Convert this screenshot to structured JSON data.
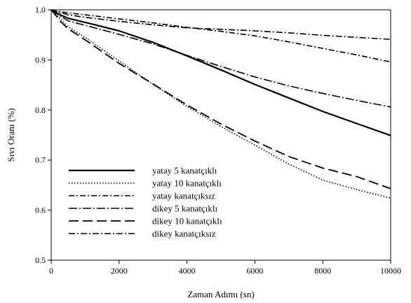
{
  "chart_data": {
    "type": "line",
    "title": "",
    "xlabel": "Zaman Adımı (sn)",
    "ylabel": "Sıvı Oranı (%)",
    "xlim": [
      0,
      10000
    ],
    "ylim": [
      0.5,
      1.0
    ],
    "xticks": [
      0,
      2000,
      4000,
      6000,
      8000,
      10000
    ],
    "yticks": [
      0.5,
      0.6,
      0.7,
      0.8,
      0.9,
      1.0
    ],
    "xtick_labels": [
      "0",
      "2000",
      "4000",
      "6000",
      "8000",
      "10000"
    ],
    "ytick_labels": [
      "0.5",
      "0.6",
      "0.7",
      "0.8",
      "0.9",
      "1.0"
    ],
    "grid": false,
    "legend_position": "bottom-left",
    "series": [
      {
        "name": "yatay 5 kanatçıklı",
        "style": "solid",
        "x": [
          0,
          100,
          300,
          500,
          1000,
          2000,
          3000,
          4000,
          5000,
          6000,
          7000,
          8000,
          9000,
          10000
        ],
        "y": [
          1.0,
          0.996,
          0.989,
          0.983,
          0.975,
          0.958,
          0.935,
          0.908,
          0.88,
          0.851,
          0.824,
          0.797,
          0.773,
          0.749
        ]
      },
      {
        "name": "yatay 10 kanatçıklı",
        "style": "dotted",
        "x": [
          0,
          100,
          300,
          500,
          1000,
          2000,
          3000,
          4000,
          5000,
          6000,
          7000,
          8000,
          9000,
          10000
        ],
        "y": [
          1.0,
          0.994,
          0.98,
          0.966,
          0.945,
          0.898,
          0.851,
          0.807,
          0.767,
          0.73,
          0.692,
          0.66,
          0.641,
          0.624
        ]
      },
      {
        "name": "yatay kanatçıksız",
        "style": "dashdot-short",
        "x": [
          0,
          100,
          300,
          500,
          1000,
          2000,
          3000,
          4000,
          5000,
          6000,
          7000,
          8000,
          9000,
          10000
        ],
        "y": [
          1.0,
          0.998,
          0.996,
          0.994,
          0.99,
          0.982,
          0.974,
          0.965,
          0.957,
          0.948,
          0.936,
          0.923,
          0.91,
          0.896
        ]
      },
      {
        "name": "dikey 5 kanatçıklı",
        "style": "dashdot-long",
        "x": [
          0,
          100,
          300,
          500,
          1000,
          2000,
          3000,
          4000,
          5000,
          6000,
          7000,
          8000,
          9000,
          10000
        ],
        "y": [
          1.0,
          0.995,
          0.986,
          0.978,
          0.969,
          0.951,
          0.932,
          0.909,
          0.887,
          0.866,
          0.848,
          0.833,
          0.819,
          0.806
        ]
      },
      {
        "name": "dikey 10 kanatçıklı",
        "style": "dashed-long",
        "x": [
          0,
          100,
          300,
          500,
          1000,
          2000,
          3000,
          4000,
          5000,
          6000,
          7000,
          8000,
          9000,
          10000
        ],
        "y": [
          1.0,
          0.992,
          0.975,
          0.962,
          0.94,
          0.893,
          0.852,
          0.81,
          0.772,
          0.738,
          0.707,
          0.684,
          0.667,
          0.643
        ]
      },
      {
        "name": "dikey kanatçıksız",
        "style": "dashdot-mid",
        "x": [
          0,
          100,
          300,
          500,
          1000,
          2000,
          3000,
          4000,
          5000,
          6000,
          7000,
          8000,
          9000,
          10000
        ],
        "y": [
          1.0,
          0.998,
          0.994,
          0.99,
          0.985,
          0.977,
          0.97,
          0.964,
          0.961,
          0.958,
          0.954,
          0.949,
          0.945,
          0.941
        ]
      }
    ]
  }
}
